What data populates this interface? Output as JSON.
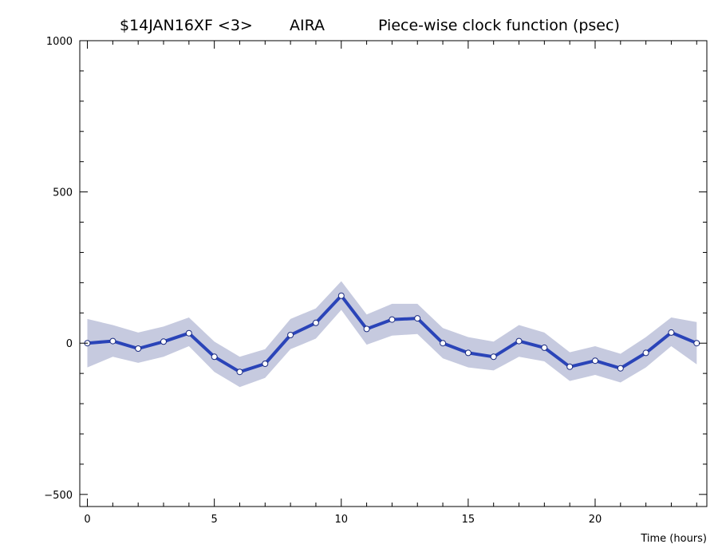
{
  "chart_data": {
    "type": "line",
    "title_parts": [
      "$14JAN16XF <3>",
      "AIRA",
      "Piece-wise clock function (psec)"
    ],
    "xlabel": "Time (hours)",
    "ylabel": "",
    "xlim": [
      -0.3,
      24.4
    ],
    "ylim": [
      -540,
      1000
    ],
    "x_ticks": [
      0,
      5,
      10,
      15,
      20
    ],
    "y_ticks": [
      -500,
      0,
      500,
      1000
    ],
    "grid": false,
    "series": [
      {
        "x": [
          0,
          1,
          2,
          3,
          4,
          5,
          6,
          7,
          8,
          9,
          10,
          11,
          12,
          13,
          14,
          15,
          16,
          17,
          18,
          19,
          20,
          21,
          22,
          23,
          24
        ],
        "values": [
          0,
          7,
          -18,
          5,
          33,
          -45,
          -95,
          -68,
          27,
          67,
          157,
          47,
          78,
          82,
          0,
          -32,
          -45,
          7,
          -15,
          -78,
          -58,
          -83,
          -32,
          35,
          0
        ],
        "band_upper": [
          80,
          60,
          35,
          55,
          85,
          5,
          -45,
          -20,
          80,
          115,
          205,
          95,
          130,
          130,
          50,
          20,
          5,
          60,
          35,
          -30,
          -10,
          -35,
          20,
          85,
          70
        ],
        "band_lower": [
          -80,
          -45,
          -65,
          -45,
          -10,
          -95,
          -145,
          -115,
          -20,
          15,
          110,
          -5,
          25,
          30,
          -50,
          -80,
          -90,
          -45,
          -60,
          -125,
          -105,
          -130,
          -80,
          -10,
          -70
        ]
      }
    ],
    "colors": {
      "line": "#2a44b8",
      "band": "#c6cadf",
      "marker_fill": "#ffffff",
      "axis": "#000000"
    }
  }
}
